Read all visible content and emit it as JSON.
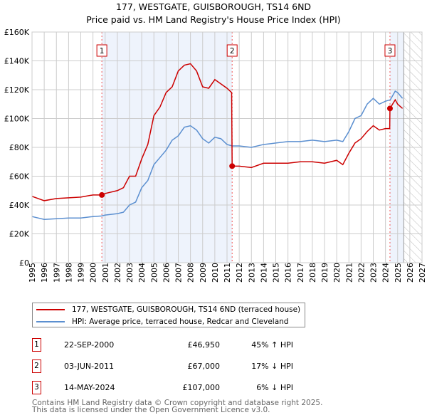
{
  "chart_data": {
    "type": "line",
    "title": "177, WESTGATE, GUISBOROUGH, TS14 6ND",
    "subtitle": "Price paid vs. HM Land Registry's House Price Index (HPI)",
    "xlim": [
      1995,
      2027
    ],
    "ylim": [
      0,
      160000
    ],
    "x_ticks": [
      "1995",
      "1996",
      "1997",
      "1998",
      "1999",
      "2000",
      "2001",
      "2002",
      "2003",
      "2004",
      "2005",
      "2006",
      "2007",
      "2008",
      "2009",
      "2010",
      "2011",
      "2012",
      "2013",
      "2014",
      "2015",
      "2016",
      "2017",
      "2018",
      "2019",
      "2020",
      "2021",
      "2022",
      "2023",
      "2024",
      "2025",
      "2026",
      "2027"
    ],
    "y_ticks": [
      {
        "v": 0,
        "label": "£0"
      },
      {
        "v": 20000,
        "label": "£20K"
      },
      {
        "v": 40000,
        "label": "£40K"
      },
      {
        "v": 60000,
        "label": "£60K"
      },
      {
        "v": 80000,
        "label": "£80K"
      },
      {
        "v": 100000,
        "label": "£100K"
      },
      {
        "v": 120000,
        "label": "£120K"
      },
      {
        "v": 140000,
        "label": "£140K"
      },
      {
        "v": 160000,
        "label": "£160K"
      }
    ],
    "grid": true,
    "shaded_periods": [
      [
        2000.73,
        2011.42
      ],
      [
        2024.37,
        2025.5
      ]
    ],
    "forecast_hatch": [
      2025.5,
      2027
    ],
    "series": [
      {
        "name": "177, WESTGATE, GUISBOROUGH, TS14 6ND (terraced house)",
        "color": "#cc0000",
        "x": [
          1995,
          1996,
          1997,
          1998,
          1999,
          2000,
          2000.73,
          2001,
          2002,
          2002.5,
          2003,
          2003.5,
          2004,
          2004.5,
          2005,
          2005.5,
          2006,
          2006.5,
          2007,
          2007.5,
          2008,
          2008.5,
          2009,
          2009.5,
          2010,
          2010.5,
          2011,
          2011.38,
          2011.42,
          2012,
          2013,
          2014,
          2015,
          2016,
          2017,
          2018,
          2019,
          2020,
          2020.5,
          2021,
          2021.5,
          2022,
          2022.5,
          2023,
          2023.5,
          2024,
          2024.35,
          2024.37,
          2024.8,
          2025,
          2025.4
        ],
        "y": [
          46000,
          43000,
          44500,
          45000,
          45500,
          47000,
          46950,
          48000,
          50000,
          52000,
          60000,
          60000,
          72000,
          82000,
          102000,
          108000,
          118000,
          122000,
          133000,
          137000,
          138000,
          133000,
          122000,
          121000,
          127000,
          124000,
          121000,
          118000,
          67000,
          67000,
          66000,
          69000,
          69000,
          69000,
          70000,
          70000,
          69000,
          71000,
          68000,
          76000,
          83000,
          86000,
          91000,
          95000,
          92000,
          93000,
          93000,
          107000,
          113000,
          110000,
          107000
        ]
      },
      {
        "name": "HPI: Average price, terraced house, Redcar and Cleveland",
        "color": "#5b8fd0",
        "x": [
          1995,
          1996,
          1997,
          1998,
          1999,
          2000,
          2000.7,
          2001,
          2002,
          2002.5,
          2003,
          2003.5,
          2004,
          2004.5,
          2005,
          2005.5,
          2006,
          2006.5,
          2007,
          2007.5,
          2008,
          2008.5,
          2009,
          2009.5,
          2010,
          2010.5,
          2011,
          2011.42,
          2012,
          2013,
          2014,
          2015,
          2016,
          2017,
          2018,
          2019,
          2020,
          2020.5,
          2021,
          2021.5,
          2022,
          2022.5,
          2023,
          2023.5,
          2024,
          2024.4,
          2024.8,
          2025,
          2025.4
        ],
        "y": [
          32000,
          30000,
          30500,
          31000,
          31000,
          32000,
          32400,
          33000,
          34000,
          35000,
          40000,
          42000,
          52000,
          57000,
          68000,
          73000,
          78000,
          85000,
          88000,
          94000,
          95000,
          92000,
          86000,
          83000,
          87000,
          86000,
          82000,
          81000,
          81000,
          80000,
          82000,
          83000,
          84000,
          84000,
          85000,
          84000,
          85000,
          84000,
          91000,
          100000,
          102000,
          110000,
          114000,
          110000,
          112000,
          113000,
          119000,
          118000,
          114000
        ]
      }
    ],
    "sales": [
      {
        "id": "1",
        "x": 2000.73,
        "y": 46950,
        "date": "22-SEP-2000",
        "price": "£46,950",
        "hpi": "45% ↑ HPI"
      },
      {
        "id": "2",
        "x": 2011.42,
        "y": 67000,
        "date": "03-JUN-2011",
        "price": "£67,000",
        "hpi": "17% ↓ HPI"
      },
      {
        "id": "3",
        "x": 2024.37,
        "y": 107000,
        "date": "14-MAY-2024",
        "price": "£107,000",
        "hpi": "6% ↓ HPI"
      }
    ]
  },
  "footer": {
    "line1": "Contains HM Land Registry data © Crown copyright and database right 2025.",
    "line2": "This data is licensed under the Open Government Licence v3.0."
  }
}
